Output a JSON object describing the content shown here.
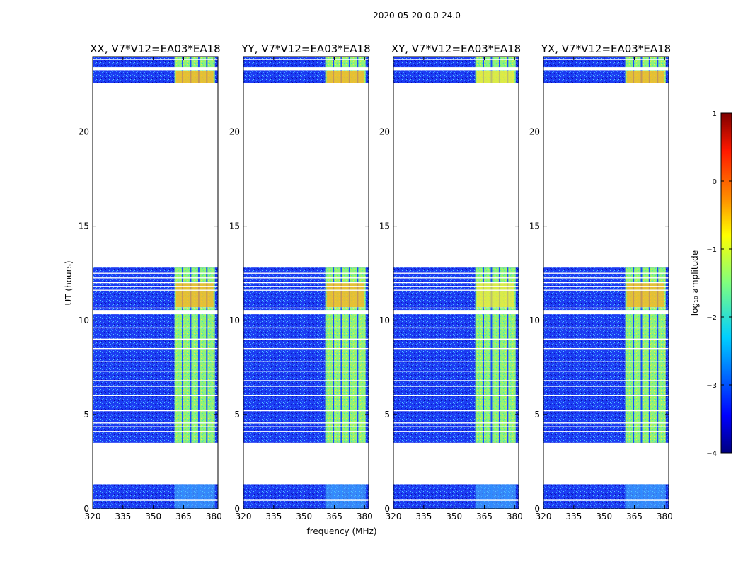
{
  "chart_data": {
    "type": "heatmap",
    "suptitle": "2020-05-20 0.0-24.0",
    "xlabel": "frequency (MHz)",
    "ylabel": "UT (hours)",
    "xlim": [
      320,
      382
    ],
    "ylim": [
      0,
      24
    ],
    "xticks": [
      320,
      335,
      350,
      365,
      380
    ],
    "yticks": [
      0,
      5,
      10,
      15,
      20
    ],
    "panels": [
      {
        "title": "XX, V7*V12=EA03*EA18"
      },
      {
        "title": "YY, V7*V12=EA03*EA18"
      },
      {
        "title": "XY, V7*V12=EA03*EA18"
      },
      {
        "title": "YX, V7*V12=EA03*EA18"
      }
    ],
    "data_blocks_ut_hours": [
      [
        0,
        1.3
      ],
      [
        3.5,
        12.8
      ],
      [
        22.6,
        24.0
      ]
    ],
    "blank_ut_hours": [
      [
        1.3,
        3.5
      ],
      [
        12.8,
        22.6
      ]
    ],
    "rfi_band_mhz": [
      360.5,
      380.5
    ],
    "flagged_lines_ut_hours": [
      0.45,
      4.1,
      4.35,
      4.55,
      5.2,
      6.0,
      6.5,
      6.8,
      7.3,
      7.8,
      8.5,
      9.0,
      9.6,
      10.35,
      10.5,
      10.65,
      11.6,
      11.8,
      12.0,
      12.25,
      12.5,
      23.3,
      23.45,
      23.85
    ],
    "colorbar": {
      "label": "log₁₀ amplitude",
      "ticks": [
        "1",
        "0",
        "−1",
        "−2",
        "−3",
        "−4"
      ],
      "range": [
        -4,
        1
      ]
    }
  }
}
